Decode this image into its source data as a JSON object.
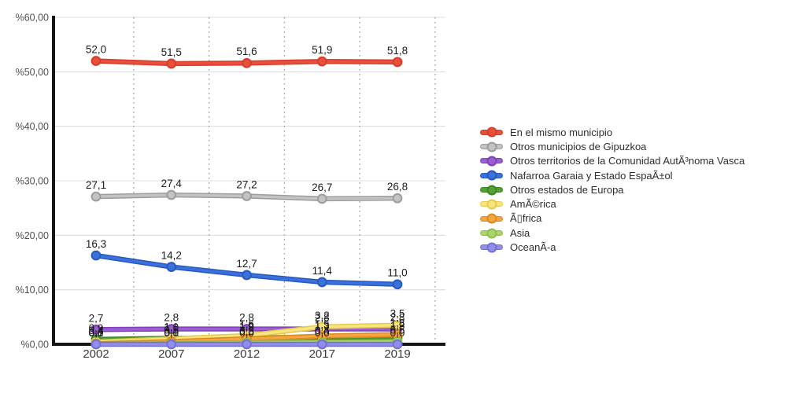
{
  "chart_data": {
    "type": "line",
    "title": "",
    "categories": [
      "2002",
      "2007",
      "2012",
      "2017",
      "2019"
    ],
    "series": [
      {
        "name": "En el mismo municipio",
        "values": [
          52.0,
          51.5,
          51.6,
          51.9,
          51.8
        ],
        "color": "#e8503c",
        "edge": "#d63d2a"
      },
      {
        "name": "Otros municipios de Gipuzkoa",
        "values": [
          27.1,
          27.4,
          27.2,
          26.7,
          26.8
        ],
        "color": "#c3c3c3",
        "edge": "#9d9d9d"
      },
      {
        "name": "Otros territorios de la Comunidad AutÃ³noma Vasca",
        "values": [
          2.7,
          2.8,
          2.8,
          2.8,
          2.8
        ],
        "color": "#9a5ecf",
        "edge": "#8140bf"
      },
      {
        "name": "Nafarroa Garaia y Estado EspaÃ±ol",
        "values": [
          16.3,
          14.2,
          12.7,
          11.4,
          11.0
        ],
        "color": "#3b72da",
        "edge": "#2858c2"
      },
      {
        "name": "Otros estados de Europa",
        "values": [
          0.9,
          1.1,
          1.2,
          1.3,
          1.3
        ],
        "color": "#55a038",
        "edge": "#3f8527"
      },
      {
        "name": "AmÃ©rica",
        "values": [
          0.4,
          1.0,
          1.6,
          3.2,
          3.5
        ],
        "color": "#f7e67e",
        "edge": "#e6c94e"
      },
      {
        "name": "Ã▯frica",
        "values": [
          0.1,
          0.5,
          1.0,
          1.5,
          1.8
        ],
        "color": "#f4a440",
        "edge": "#dd8a1e"
      },
      {
        "name": "Asia",
        "values": [
          0.0,
          0.1,
          0.3,
          0.4,
          0.5
        ],
        "color": "#aad66d",
        "edge": "#8fc044"
      },
      {
        "name": "OceanÃ-a",
        "values": [
          0.0,
          0.0,
          0.0,
          0.0,
          0.0
        ],
        "color": "#918dea",
        "edge": "#736fd5"
      }
    ],
    "ylim": [
      0,
      60
    ],
    "y_ticks": [
      "%0,00",
      "%10,00",
      "%20,00",
      "%30,00",
      "%40,00",
      "%50,00",
      "%60,00"
    ],
    "decimal_separator": ",",
    "legend_position": "right",
    "grid": {
      "horizontal": "solid",
      "vertical": "dotted-between-categories"
    },
    "axis_color": "#161616",
    "hgrid_color": "#dcdcdc",
    "vgrid_color": "#9a9a9a",
    "label_color": "#1b1b1b",
    "tick_color": "#4f4f4f"
  }
}
